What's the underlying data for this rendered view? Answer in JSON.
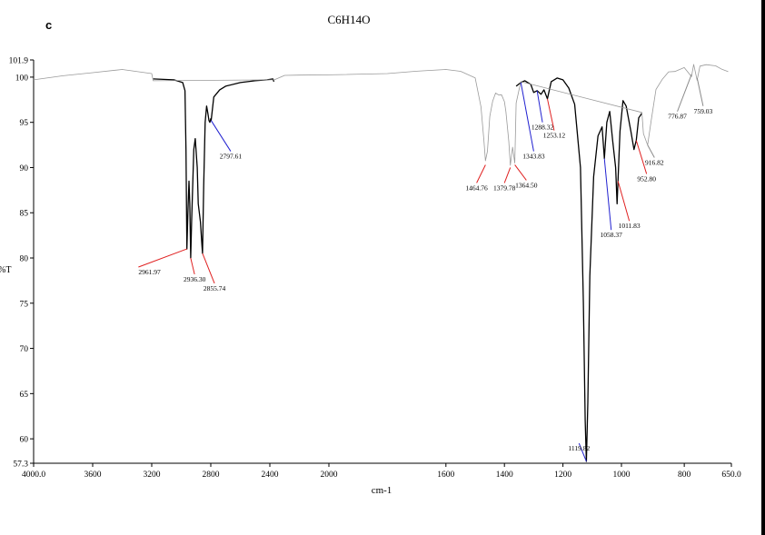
{
  "chart_data": {
    "type": "line",
    "panel_label": "c",
    "title": "C6H14O",
    "xlabel": "cm-1",
    "ylabel": "%T",
    "xlim": [
      4000.0,
      650.0
    ],
    "ylim": [
      57.3,
      101.9
    ],
    "x_tick_labels": [
      "4000.0",
      "3600",
      "3200",
      "2800",
      "2400",
      "2000",
      "1600",
      "1400",
      "1200",
      "1000",
      "800",
      "650.0"
    ],
    "x_tick_values": [
      4000,
      3600,
      3200,
      2800,
      2400,
      2000,
      1600,
      1400,
      1200,
      1000,
      800,
      650
    ],
    "y_tick_labels": [
      "101.9",
      "100",
      "95",
      "90",
      "85",
      "80",
      "75",
      "70",
      "65",
      "60",
      "57.3"
    ],
    "y_tick_values": [
      101.9,
      100,
      95,
      90,
      85,
      80,
      75,
      70,
      65,
      60,
      57.3
    ],
    "series": [
      {
        "name": "Spectrum (bold)",
        "color": "#000000",
        "x": [
          3190,
          3050,
          2990,
          2975,
          2968,
          2961.97,
          2955,
          2948,
          2942,
          2936.3,
          2930,
          2915,
          2905,
          2892,
          2885,
          2870,
          2860,
          2855.74,
          2848,
          2838,
          2828,
          2820,
          2812,
          2806,
          2800,
          2797.61,
          2780,
          2740,
          2700,
          2600,
          2500,
          2420,
          2380,
          2372
        ],
        "y": [
          99.8,
          99.7,
          99.4,
          98.5,
          92.0,
          81.0,
          85.0,
          88.5,
          86.0,
          80.0,
          84.0,
          92.0,
          93.2,
          90.0,
          86.0,
          84.0,
          81.5,
          80.5,
          88.0,
          95.0,
          96.8,
          96.0,
          95.2,
          95.0,
          95.4,
          95.2,
          97.8,
          98.6,
          99.0,
          99.4,
          99.6,
          99.7,
          99.8,
          99.5
        ]
      },
      {
        "name": "Spectrum (bold, fingerprint)",
        "color": "#000000",
        "x": [
          1360,
          1343.83,
          1330,
          1310,
          1300,
          1288.32,
          1275,
          1265,
          1253.12,
          1240,
          1220,
          1200,
          1180,
          1160,
          1140,
          1130,
          1124,
          1119.82,
          1115,
          1108,
          1095,
          1080,
          1066,
          1058.37,
          1050,
          1040,
          1030,
          1020,
          1015,
          1011.83,
          1005,
          995,
          985,
          970,
          960,
          952.8,
          945,
          935
        ],
        "y": [
          99.0,
          99.4,
          99.6,
          99.2,
          98.3,
          98.5,
          98.1,
          98.6,
          97.6,
          99.5,
          99.9,
          99.7,
          98.8,
          97.0,
          90.0,
          75.0,
          62.0,
          57.5,
          64.0,
          78.0,
          89.0,
          93.5,
          94.5,
          91.0,
          95.0,
          96.2,
          93.0,
          90.0,
          86.0,
          88.5,
          94.0,
          97.4,
          96.8,
          94.0,
          92.0,
          93.0,
          95.5,
          96.0
        ]
      },
      {
        "name": "Spectrum (light)",
        "color": "#9a9a9a",
        "x": [
          4000,
          3800,
          3600,
          3400,
          3200,
          3190,
          2370,
          2300,
          2200,
          2000,
          1800,
          1700,
          1600,
          1550,
          1500,
          1480,
          1470,
          1464.76,
          1458,
          1450,
          1440,
          1430,
          1420,
          1410,
          1400,
          1395,
          1385,
          1379.78,
          1372,
          1364.5,
          1360,
          1344,
          935,
          930,
          916.82,
          905,
          890,
          870,
          850,
          830,
          800,
          776.87,
          770,
          759.03,
          750,
          730,
          700,
          680,
          660
        ],
        "y": [
          99.7,
          100.4,
          100.5,
          100.6,
          100.3,
          99.8,
          99.8,
          100.1,
          100.3,
          100.5,
          100.4,
          100.5,
          100.6,
          100.4,
          99.7,
          96.5,
          93.0,
          90.5,
          92.0,
          95.5,
          97.6,
          98.0,
          98.2,
          98.0,
          97.2,
          96.0,
          93.0,
          90.0,
          92.5,
          90.3,
          97.0,
          99.3,
          96.0,
          94.0,
          92.5,
          95.0,
          98.5,
          99.5,
          100.5,
          100.8,
          100.9,
          100.3,
          101.2,
          99.9,
          101.0,
          101.4,
          101.0,
          100.8,
          100.6
        ]
      }
    ],
    "peak_labels": [
      {
        "label": "2961.97",
        "x": 2961.97,
        "y": 81.0,
        "color": "red",
        "tx": 3290,
        "ty": 79.0,
        "anchor": "start"
      },
      {
        "label": "2936.30",
        "x": 2936.3,
        "y": 80.0,
        "color": "red",
        "tx": 2910,
        "ty": 78.2,
        "anchor": "middle"
      },
      {
        "label": "2855.74",
        "x": 2855.74,
        "y": 80.5,
        "color": "red",
        "tx": 2775,
        "ty": 77.2,
        "anchor": "middle"
      },
      {
        "label": "2797.61",
        "x": 2797.61,
        "y": 95.2,
        "color": "blue",
        "tx": 2665,
        "ty": 91.8,
        "anchor": "middle"
      },
      {
        "label": "1464.76",
        "x": 1464.76,
        "y": 90.3,
        "color": "red",
        "tx": 1495,
        "ty": 88.3,
        "anchor": "middle"
      },
      {
        "label": "1379.78",
        "x": 1379.78,
        "y": 90.0,
        "color": "red",
        "tx": 1400,
        "ty": 88.3,
        "anchor": "middle"
      },
      {
        "label": "1364.50",
        "x": 1364.5,
        "y": 90.3,
        "color": "red",
        "tx": 1325,
        "ty": 88.6,
        "anchor": "middle"
      },
      {
        "label": "1343.83",
        "x": 1343.83,
        "y": 99.4,
        "color": "blue",
        "tx": 1300,
        "ty": 91.8,
        "anchor": "middle"
      },
      {
        "label": "1288.32",
        "x": 1288.32,
        "y": 98.5,
        "color": "blue",
        "tx": 1270,
        "ty": 95.0,
        "anchor": "middle"
      },
      {
        "label": "1253.12",
        "x": 1253.12,
        "y": 97.6,
        "color": "red",
        "tx": 1230,
        "ty": 94.1,
        "anchor": "middle"
      },
      {
        "label": "1119.82",
        "x": 1119.82,
        "y": 57.5,
        "color": "blue",
        "tx": 1145,
        "ty": 59.5,
        "anchor": "middle"
      },
      {
        "label": "1058.37",
        "x": 1058.37,
        "y": 91.0,
        "color": "blue",
        "tx": 1035,
        "ty": 83.1,
        "anchor": "middle"
      },
      {
        "label": "1011.83",
        "x": 1011.83,
        "y": 88.5,
        "color": "red",
        "tx": 975,
        "ty": 84.1,
        "anchor": "middle"
      },
      {
        "label": "952.80",
        "x": 952.8,
        "y": 93.0,
        "color": "red",
        "tx": 920,
        "ty": 89.3,
        "anchor": "middle"
      },
      {
        "label": "916.82",
        "x": 916.82,
        "y": 92.5,
        "color": "gray",
        "tx": 895,
        "ty": 91.1,
        "anchor": "middle"
      },
      {
        "label": "776.87",
        "x": 776.87,
        "y": 100.3,
        "color": "gray",
        "tx": 822,
        "ty": 96.2,
        "anchor": "middle"
      },
      {
        "label": "759.03",
        "x": 759.03,
        "y": 99.9,
        "color": "gray",
        "tx": 740,
        "ty": 96.8,
        "anchor": "middle"
      }
    ],
    "grid": false,
    "legend": "none"
  }
}
